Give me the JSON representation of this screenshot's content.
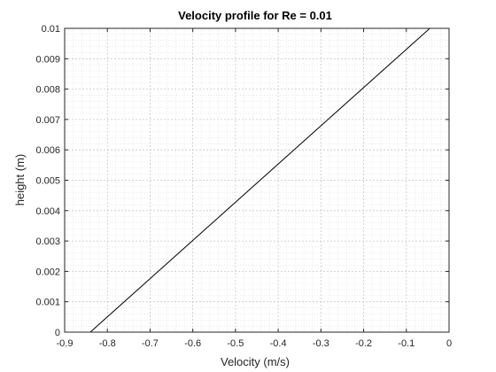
{
  "chart_data": {
    "type": "line",
    "title": "Velocity profile for Re = 0.01",
    "xlabel": "Velocity (m/s)",
    "ylabel": "height (m)",
    "xlim": [
      -0.9,
      0
    ],
    "ylim": [
      0,
      0.01
    ],
    "xticks": [
      -0.9,
      -0.8,
      -0.7,
      -0.6,
      -0.5,
      -0.4,
      -0.3,
      -0.2,
      -0.1,
      0
    ],
    "xtick_labels": [
      "-0.9",
      "-0.8",
      "-0.7",
      "-0.6",
      "-0.5",
      "-0.4",
      "-0.3",
      "-0.2",
      "-0.1",
      "0"
    ],
    "yticks": [
      0,
      0.001,
      0.002,
      0.003,
      0.004,
      0.005,
      0.006,
      0.007,
      0.008,
      0.009,
      0.01
    ],
    "ytick_labels": [
      "0",
      "0.001",
      "0.002",
      "0.003",
      "0.004",
      "0.005",
      "0.006",
      "0.007",
      "0.008",
      "0.009",
      "0.01"
    ],
    "grid": true,
    "minor_grid": true,
    "series": [
      {
        "x": [
          -0.84,
          -0.045
        ],
        "y": [
          0,
          0.01
        ],
        "color": "#000000"
      }
    ]
  }
}
